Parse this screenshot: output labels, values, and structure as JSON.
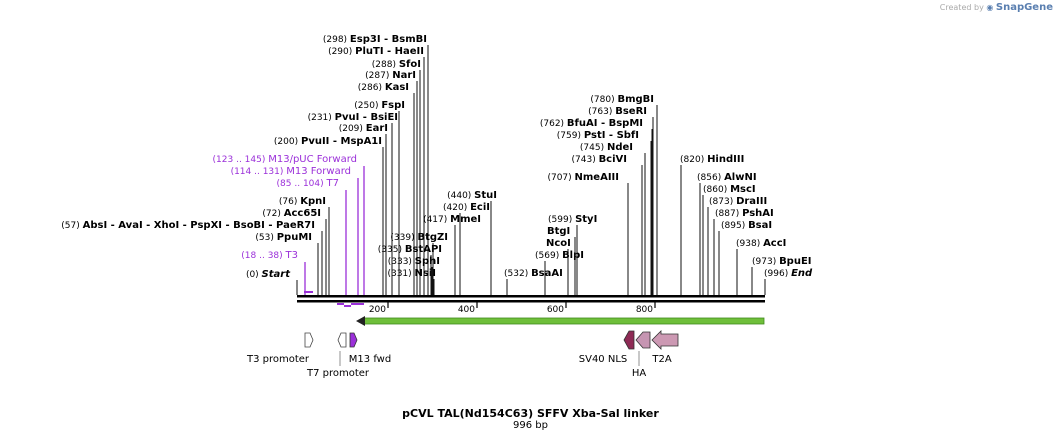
{
  "header": {
    "credit_prefix": "Created by",
    "credit_brand": "SnapGene"
  },
  "map": {
    "title": "pCVL TAL(Nd154C63) SFFV Xba-Sal linker",
    "length_label": "996 bp",
    "ticks": [
      {
        "label": "200"
      },
      {
        "label": "400"
      },
      {
        "label": "600"
      },
      {
        "label": "800"
      }
    ],
    "sites": [
      {
        "text": "(0)",
        "name": "Start",
        "italic": true
      },
      {
        "text": "(57)",
        "name": "AbsI  -  AvaI  -  XhoI  -  PspXI  -  BsoBI  -  PaeR7I"
      },
      {
        "text": "(53)",
        "name": "PpuMI"
      },
      {
        "text": "(72)",
        "name": "Acc65I"
      },
      {
        "text": "(76)",
        "name": "KpnI"
      },
      {
        "text": "(200)",
        "name": "PvuII  -  MspA1I"
      },
      {
        "text": "(209)",
        "name": "EarI"
      },
      {
        "text": "(231)",
        "name": "PvuI  -  BsiEI"
      },
      {
        "text": "(250)",
        "name": "FspI"
      },
      {
        "text": "(286)",
        "name": "KasI"
      },
      {
        "text": "(287)",
        "name": "NarI"
      },
      {
        "text": "(288)",
        "name": "SfoI"
      },
      {
        "text": "(290)",
        "name": "PluTI  -  HaeII"
      },
      {
        "text": "(298)",
        "name": "Esp3I  -  BsmBI"
      },
      {
        "text": "(331)",
        "name": "NsiI"
      },
      {
        "text": "(333)",
        "name": "SphI"
      },
      {
        "text": "(335)",
        "name": "BstAPI"
      },
      {
        "text": "(339)",
        "name": "BtgZI"
      },
      {
        "text": "(417)",
        "name": "MmeI"
      },
      {
        "text": "(420)",
        "name": "EciI"
      },
      {
        "text": "(440)",
        "name": "StuI"
      },
      {
        "text": "(532)",
        "name": "BsaAI"
      },
      {
        "text": "(569)",
        "name": "BlpI"
      },
      {
        "text": "",
        "name": "NcoI"
      },
      {
        "text": "",
        "name": "BtgI"
      },
      {
        "text": "(599)",
        "name": "StyI"
      },
      {
        "text": "(707)",
        "name": "NmeAIII"
      },
      {
        "text": "(743)",
        "name": "BciVI"
      },
      {
        "text": "(745)",
        "name": "NdeI"
      },
      {
        "text": "(759)",
        "name": "PstI  -  SbfI"
      },
      {
        "text": "(762)",
        "name": "BfuAI  -  BspMI"
      },
      {
        "text": "(763)",
        "name": "BseRI"
      },
      {
        "text": "(780)",
        "name": "BmgBI"
      },
      {
        "text": "(820)",
        "name": "HindIII"
      },
      {
        "text": "(856)",
        "name": "AlwNI"
      },
      {
        "text": "(860)",
        "name": "MscI"
      },
      {
        "text": "(873)",
        "name": "DraIII"
      },
      {
        "text": "(887)",
        "name": "PshAI"
      },
      {
        "text": "(895)",
        "name": "BsaI"
      },
      {
        "text": "(938)",
        "name": "AccI"
      },
      {
        "text": "(973)",
        "name": "BpuEI"
      },
      {
        "text": "(996)",
        "name": "End",
        "italic": true
      }
    ],
    "primers": [
      {
        "range": "(18 .. 38)",
        "name": "T3"
      },
      {
        "range": "(85 .. 104)",
        "name": "T7"
      },
      {
        "range": "(114 .. 131)",
        "name": "M13 Forward"
      },
      {
        "range": "(123 .. 145)",
        "name": "M13/pUC Forward"
      }
    ],
    "features": [
      {
        "name": "T3 promoter"
      },
      {
        "name": "T7 promoter"
      },
      {
        "name": "M13 fwd"
      },
      {
        "name": "SV40 NLS"
      },
      {
        "name": "HA"
      },
      {
        "name": "T2A"
      }
    ],
    "colors": {
      "primer": "#9b30d9",
      "orf": "#6fbf3a",
      "orf_dark": "#3f8a1c",
      "nls": "#8e2a55",
      "ha": "#c695b2",
      "t2a": "#cc99b3"
    }
  }
}
